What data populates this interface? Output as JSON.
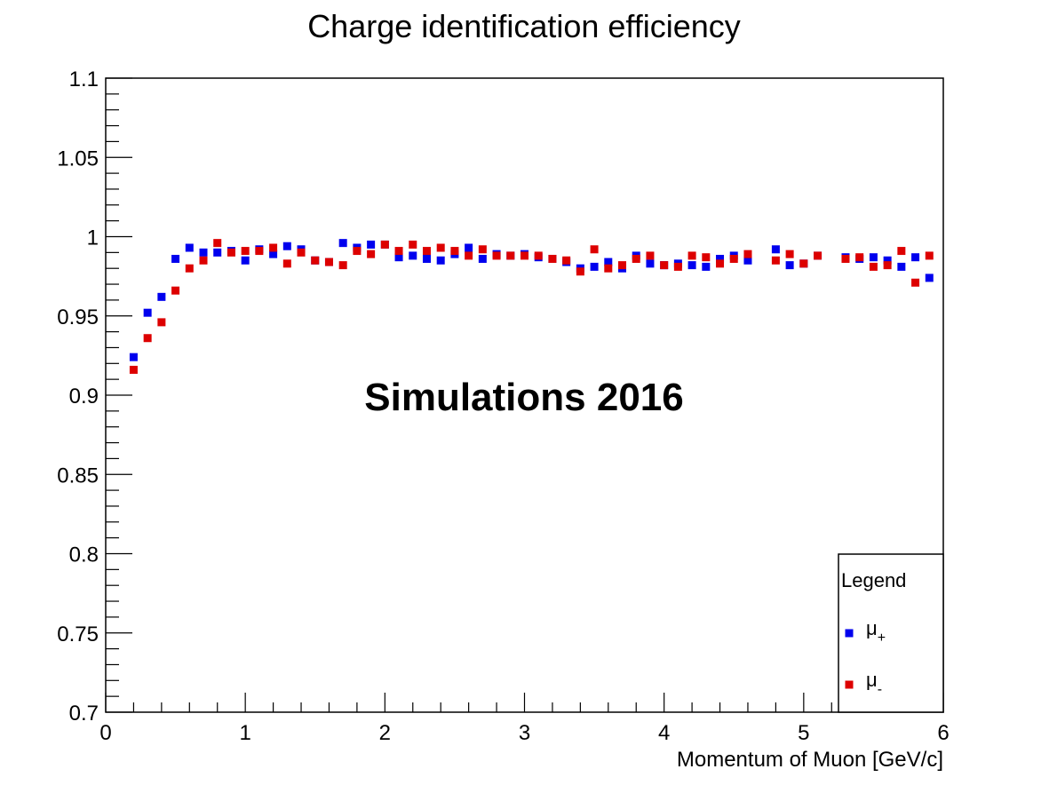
{
  "chart_data": {
    "type": "scatter",
    "title": "Charge identification efficiency",
    "xlabel": "Momentum of Muon [GeV/c]",
    "ylabel": "",
    "xlim": [
      0,
      6
    ],
    "ylim": [
      0.7,
      1.1
    ],
    "xticks": [
      "0",
      "1",
      "2",
      "3",
      "4",
      "5",
      "6"
    ],
    "yticks": [
      "0.7",
      "0.75",
      "0.8",
      "0.85",
      "0.9",
      "0.95",
      "1",
      "1.05",
      "1.1"
    ],
    "annotation": "Simulations 2016",
    "legend": {
      "title": "Legend",
      "placement": "bottom-right"
    },
    "grid": false,
    "series": [
      {
        "name": "μ+",
        "label_base": "μ",
        "label_sub": "+",
        "color": "#0000ee",
        "x": [
          0.2,
          0.3,
          0.4,
          0.5,
          0.6,
          0.7,
          0.8,
          0.9,
          1.0,
          1.1,
          1.2,
          1.3,
          1.4,
          1.5,
          1.6,
          1.7,
          1.8,
          1.9,
          2.0,
          2.1,
          2.2,
          2.3,
          2.4,
          2.5,
          2.6,
          2.7,
          2.8,
          2.9,
          3.0,
          3.1,
          3.2,
          3.3,
          3.4,
          3.5,
          3.6,
          3.7,
          3.8,
          3.9,
          4.0,
          4.1,
          4.2,
          4.3,
          4.4,
          4.5,
          4.6,
          4.8,
          4.9,
          5.0,
          5.1,
          5.3,
          5.4,
          5.5,
          5.6,
          5.7,
          5.8,
          5.9
        ],
        "y": [
          0.924,
          0.952,
          0.962,
          0.986,
          0.993,
          0.99,
          0.99,
          0.991,
          0.985,
          0.992,
          0.989,
          0.994,
          0.992,
          0.985,
          0.984,
          0.996,
          0.993,
          0.995,
          0.995,
          0.987,
          0.988,
          0.986,
          0.985,
          0.989,
          0.993,
          0.986,
          0.989,
          0.988,
          0.989,
          0.987,
          0.986,
          0.984,
          0.98,
          0.981,
          0.984,
          0.98,
          0.988,
          0.983,
          0.982,
          0.983,
          0.982,
          0.981,
          0.986,
          0.988,
          0.985,
          0.992,
          0.982,
          0.983,
          0.988,
          0.987,
          0.986,
          0.987,
          0.985,
          0.981,
          0.987,
          0.974
        ]
      },
      {
        "name": "μ-",
        "label_base": "μ",
        "label_sub": "-",
        "color": "#dd0000",
        "x": [
          0.2,
          0.3,
          0.4,
          0.5,
          0.6,
          0.7,
          0.8,
          0.9,
          1.0,
          1.1,
          1.2,
          1.3,
          1.4,
          1.5,
          1.6,
          1.7,
          1.8,
          1.9,
          2.0,
          2.1,
          2.2,
          2.3,
          2.4,
          2.5,
          2.6,
          2.7,
          2.8,
          2.9,
          3.0,
          3.1,
          3.2,
          3.3,
          3.4,
          3.5,
          3.6,
          3.7,
          3.8,
          3.9,
          4.0,
          4.1,
          4.2,
          4.3,
          4.4,
          4.5,
          4.6,
          4.8,
          4.9,
          5.0,
          5.1,
          5.3,
          5.4,
          5.5,
          5.6,
          5.7,
          5.8,
          5.9
        ],
        "y": [
          0.916,
          0.936,
          0.946,
          0.966,
          0.98,
          0.985,
          0.996,
          0.99,
          0.991,
          0.991,
          0.993,
          0.983,
          0.99,
          0.985,
          0.984,
          0.982,
          0.991,
          0.989,
          0.995,
          0.991,
          0.995,
          0.991,
          0.993,
          0.991,
          0.988,
          0.992,
          0.988,
          0.988,
          0.988,
          0.988,
          0.986,
          0.985,
          0.978,
          0.992,
          0.98,
          0.982,
          0.986,
          0.988,
          0.982,
          0.981,
          0.988,
          0.987,
          0.983,
          0.986,
          0.989,
          0.985,
          0.989,
          0.983,
          0.988,
          0.986,
          0.987,
          0.981,
          0.982,
          0.991,
          0.971,
          0.988
        ]
      }
    ]
  }
}
